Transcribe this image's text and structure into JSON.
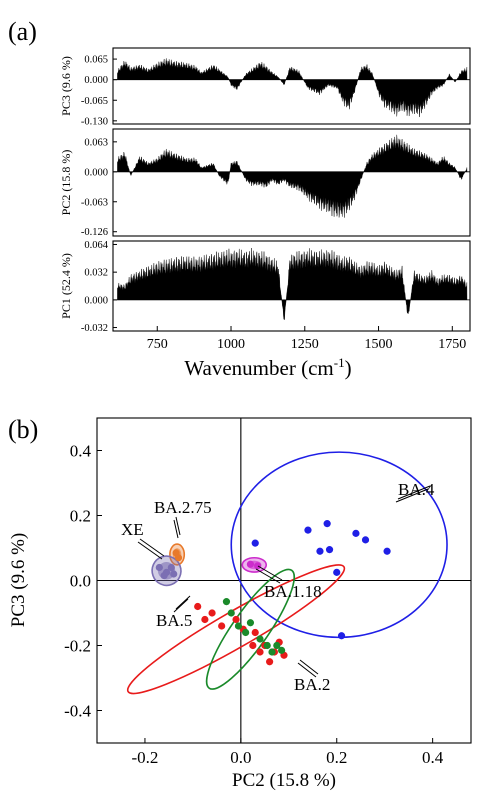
{
  "panel_a": {
    "label": "(a)",
    "xlabel_main": "Wavenumber (cm",
    "xlabel_sup": "-1",
    "xlabel_end": ")",
    "xticks": [
      "750",
      "1000",
      "1250",
      "1500",
      "1750"
    ],
    "colors": {
      "fill": "#000000",
      "frame": "#000000"
    }
  },
  "panel_b": {
    "label": "(b)"
  },
  "chart_data": [
    {
      "type": "area",
      "title": "",
      "x_range": [
        600,
        1810
      ],
      "subplots": [
        {
          "ylabel": "PC3 (9.6 %)",
          "yticks": [
            "0.065",
            "0.000",
            "-0.065",
            "-0.130"
          ],
          "ylim": [
            -0.14,
            0.1
          ],
          "series": {
            "x": [
              615,
              640,
              660,
              690,
              720,
              750,
              780,
              810,
              850,
              880,
              900,
              940,
              960,
              990,
              1000,
              1020,
              1050,
              1070,
              1100,
              1120,
              1140,
              1160,
              1180,
              1200,
              1230,
              1260,
              1300,
              1330,
              1360,
              1380,
              1400,
              1420,
              1440,
              1460,
              1480,
              1500,
              1520,
              1540,
              1560,
              1580,
              1600,
              1620,
              1640,
              1660,
              1680,
              1700,
              1720,
              1740,
              1760,
              1780,
              1800
            ],
            "y": [
              0.03,
              0.065,
              0.04,
              0.05,
              0.035,
              0.055,
              0.07,
              0.06,
              0.055,
              0.045,
              0.025,
              0.05,
              0.035,
              0.01,
              -0.02,
              -0.035,
              0.02,
              0.035,
              0.06,
              0.045,
              0.025,
              0.01,
              -0.02,
              0.045,
              0.03,
              -0.03,
              -0.05,
              -0.02,
              -0.03,
              -0.08,
              -0.1,
              -0.04,
              0.04,
              0.05,
              0.02,
              -0.05,
              -0.09,
              -0.1,
              -0.12,
              -0.1,
              -0.12,
              -0.11,
              -0.12,
              -0.09,
              -0.05,
              -0.03,
              -0.02,
              0.02,
              -0.01,
              0.03,
              0.04
            ]
          }
        },
        {
          "ylabel": "PC2 (15.8 %)",
          "yticks": [
            "0.063",
            "0.000",
            "-0.063",
            "-0.126"
          ],
          "ylim": [
            -0.135,
            0.09
          ],
          "series": {
            "x": [
              615,
              640,
              660,
              690,
              720,
              750,
              780,
              810,
              850,
              880,
              900,
              940,
              960,
              990,
              1000,
              1020,
              1050,
              1070,
              1100,
              1120,
              1140,
              1160,
              1180,
              1200,
              1230,
              1260,
              1300,
              1330,
              1360,
              1380,
              1400,
              1420,
              1440,
              1460,
              1480,
              1500,
              1520,
              1540,
              1560,
              1580,
              1600,
              1620,
              1640,
              1660,
              1680,
              1700,
              1720,
              1740,
              1760,
              1780,
              1800
            ],
            "y": [
              0.03,
              0.045,
              -0.01,
              0.035,
              0.02,
              0.03,
              0.05,
              0.04,
              0.03,
              0.03,
              0.01,
              0.02,
              -0.01,
              -0.03,
              0.02,
              0.025,
              -0.02,
              -0.03,
              -0.03,
              -0.035,
              -0.02,
              -0.03,
              -0.02,
              -0.035,
              -0.04,
              -0.06,
              -0.08,
              -0.09,
              -0.1,
              -0.1,
              -0.085,
              -0.06,
              -0.02,
              0.02,
              0.04,
              0.05,
              0.06,
              0.07,
              0.08,
              0.07,
              0.06,
              0.05,
              0.045,
              0.04,
              0.03,
              0.02,
              0.035,
              0.02,
              0.01,
              -0.02,
              0.01
            ]
          }
        },
        {
          "ylabel": "PC1 (52.4 %)",
          "yticks": [
            "0.064",
            "0.032",
            "0.000",
            "-0.032"
          ],
          "ylim": [
            -0.036,
            0.068
          ],
          "series": {
            "x": [
              615,
              640,
              660,
              690,
              720,
              750,
              780,
              810,
              850,
              880,
              900,
              940,
              960,
              990,
              1000,
              1020,
              1050,
              1070,
              1100,
              1120,
              1140,
              1160,
              1180,
              1200,
              1230,
              1260,
              1300,
              1330,
              1360,
              1380,
              1400,
              1420,
              1440,
              1460,
              1480,
              1500,
              1520,
              1540,
              1560,
              1580,
              1600,
              1620,
              1640,
              1660,
              1680,
              1700,
              1720,
              1740,
              1760,
              1780,
              1800
            ],
            "y": [
              0.02,
              0.018,
              0.03,
              0.035,
              0.04,
              0.045,
              0.048,
              0.05,
              0.052,
              0.05,
              0.052,
              0.055,
              0.057,
              0.06,
              0.058,
              0.06,
              0.058,
              0.06,
              0.058,
              0.055,
              0.05,
              0.045,
              -0.03,
              0.055,
              0.057,
              0.06,
              0.058,
              0.06,
              0.055,
              0.05,
              0.052,
              0.045,
              0.04,
              0.045,
              0.045,
              0.04,
              0.045,
              0.04,
              0.035,
              0.04,
              -0.025,
              0.035,
              0.03,
              0.028,
              0.035,
              0.025,
              0.03,
              0.03,
              0.025,
              0.03,
              0.02
            ]
          }
        }
      ]
    },
    {
      "type": "scatter",
      "title": "",
      "xlabel": "PC2 (15.8 %)",
      "ylabel": "PC3 (9.6 %)",
      "xlim": [
        -0.3,
        0.48
      ],
      "ylim": [
        -0.5,
        0.5
      ],
      "xticks": [
        "-0.2",
        "0.0",
        "0.2",
        "0.4"
      ],
      "yticks": [
        "0.4",
        "0.2",
        "0.0",
        "-0.2",
        "-0.4"
      ],
      "groups": [
        {
          "name": "BA.4",
          "color": "#1f1fe6",
          "points": [
            [
              0.03,
              0.115
            ],
            [
              0.14,
              0.155
            ],
            [
              0.18,
              0.175
            ],
            [
              0.24,
              0.145
            ],
            [
              0.26,
              0.125
            ],
            [
              0.165,
              0.09
            ],
            [
              0.185,
              0.095
            ],
            [
              0.305,
              0.09
            ],
            [
              0.2,
              0.025
            ],
            [
              0.21,
              -0.17
            ]
          ],
          "ellipse": {
            "cx": 0.205,
            "cy": 0.11,
            "rx": 0.225,
            "ry": 0.285,
            "angle": 0
          }
        },
        {
          "name": "BA.2.75",
          "color": "#e8792a",
          "points": [
            [
              -0.135,
              0.085
            ],
            [
              -0.13,
              0.07
            ]
          ],
          "ellipse": {
            "cx": -0.133,
            "cy": 0.08,
            "rx": 0.015,
            "ry": 0.032,
            "angle": 0
          }
        },
        {
          "name": "XE",
          "color": "#7b6fb3",
          "points": [
            [
              -0.17,
              0.04
            ],
            [
              -0.155,
              0.025
            ],
            [
              -0.145,
              0.04
            ],
            [
              -0.16,
              0.015
            ],
            [
              -0.14,
              0.02
            ]
          ],
          "ellipse": {
            "cx": -0.155,
            "cy": 0.03,
            "rx": 0.03,
            "ry": 0.045,
            "angle": -20
          }
        },
        {
          "name": "BA.1.18",
          "color": "#cc2ccc",
          "points": [
            [
              0.02,
              0.05
            ],
            [
              0.035,
              0.045
            ]
          ],
          "ellipse": {
            "cx": 0.028,
            "cy": 0.048,
            "rx": 0.025,
            "ry": 0.022,
            "angle": 0
          }
        },
        {
          "name": "BA.5",
          "color": "#e81b1b",
          "points": [
            [
              -0.09,
              -0.08
            ],
            [
              -0.075,
              -0.12
            ],
            [
              -0.06,
              -0.1
            ],
            [
              -0.04,
              -0.14
            ],
            [
              -0.01,
              -0.12
            ],
            [
              0.005,
              -0.15
            ],
            [
              0.03,
              -0.16
            ],
            [
              0.05,
              -0.2
            ],
            [
              0.07,
              -0.22
            ],
            [
              0.08,
              -0.19
            ],
            [
              0.06,
              -0.25
            ],
            [
              0.04,
              -0.22
            ],
            [
              0.025,
              -0.2
            ],
            [
              0.09,
              -0.23
            ]
          ],
          "ellipse": {
            "cx": -0.01,
            "cy": -0.15,
            "rx": 0.26,
            "ry": 0.055,
            "angle": -30
          }
        },
        {
          "name": "BA.2",
          "color": "#1a8a2a",
          "points": [
            [
              -0.03,
              -0.065
            ],
            [
              -0.02,
              -0.1
            ],
            [
              -0.005,
              -0.14
            ],
            [
              0.01,
              -0.16
            ],
            [
              0.02,
              -0.13
            ],
            [
              0.04,
              -0.18
            ],
            [
              0.055,
              -0.2
            ],
            [
              0.065,
              -0.22
            ],
            [
              0.075,
              -0.2
            ],
            [
              0.085,
              -0.215
            ]
          ],
          "ellipse": {
            "cx": 0.02,
            "cy": -0.15,
            "rx": 0.15,
            "ry": 0.055,
            "angle": -55
          }
        }
      ]
    }
  ]
}
